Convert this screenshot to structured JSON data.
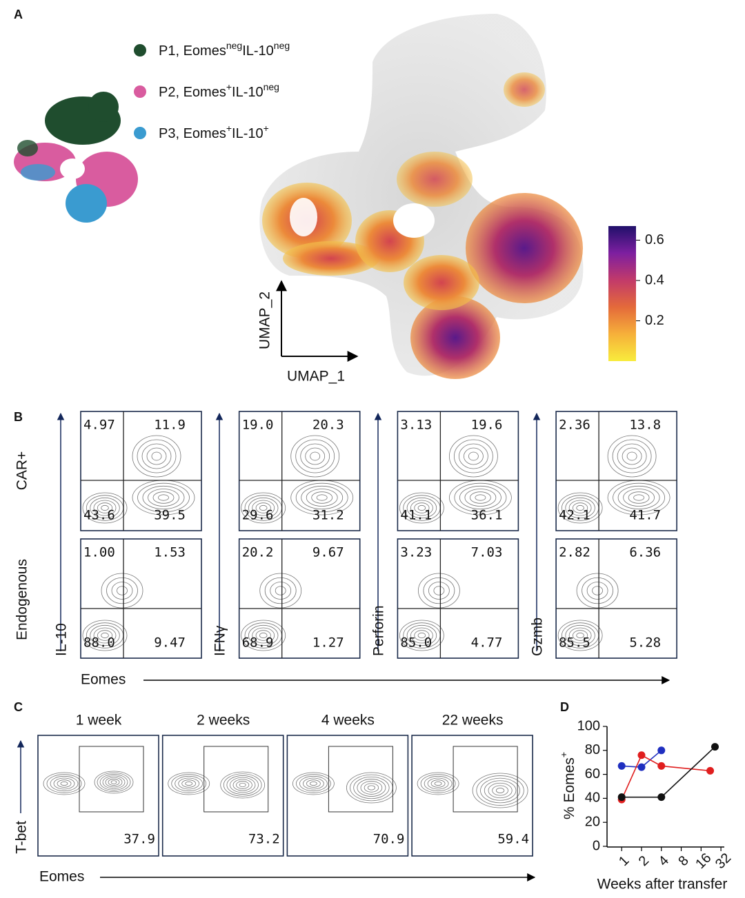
{
  "panel_a": {
    "label": "A",
    "legend": [
      {
        "color": "#1f4d2e",
        "parts": [
          {
            "text": "P1, Eomes"
          },
          {
            "text": "neg",
            "sup": true
          },
          {
            "text": "IL-10"
          },
          {
            "text": "neg",
            "sup": true
          }
        ]
      },
      {
        "color": "#d95c9f",
        "parts": [
          {
            "text": "P2, Eomes"
          },
          {
            "text": "+",
            "sup": true
          },
          {
            "text": "IL-10"
          },
          {
            "text": "neg",
            "sup": true
          }
        ]
      },
      {
        "color": "#3a9bd0",
        "parts": [
          {
            "text": "P3, Eomes"
          },
          {
            "text": "+",
            "sup": true
          },
          {
            "text": "IL-10"
          },
          {
            "text": "+",
            "sup": true
          }
        ]
      }
    ],
    "colorbar": {
      "lim": [
        0,
        0.67
      ],
      "ticks": [
        0.2,
        0.4,
        0.6
      ],
      "colors": [
        "#f8ec3c",
        "#f6b03a",
        "#e46a3a",
        "#c23a6a",
        "#7d1fa0",
        "#20106a"
      ]
    },
    "x_axis_label": "UMAP_1",
    "y_axis_label": "UMAP_2"
  },
  "panel_b": {
    "label": "B",
    "rows": [
      "CAR+",
      "Endogenous"
    ],
    "markers": [
      "IL-10",
      "IFNγ",
      "Perforin",
      "Gzmb"
    ],
    "x_label": "Eomes",
    "quadrants": [
      [
        [
          "4.97",
          "11.9",
          "43.6",
          "39.5"
        ],
        [
          "19.0",
          "20.3",
          "29.6",
          "31.2"
        ],
        [
          "3.13",
          "19.6",
          "41.1",
          "36.1"
        ],
        [
          "2.36",
          "13.8",
          "42.1",
          "41.7"
        ]
      ],
      [
        [
          "1.00",
          "1.53",
          "88.0",
          "9.47"
        ],
        [
          "20.2",
          "9.67",
          "68.9",
          "1.27"
        ],
        [
          "3.23",
          "7.03",
          "85.0",
          "4.77"
        ],
        [
          "2.82",
          "6.36",
          "85.5",
          "5.28"
        ]
      ]
    ]
  },
  "panel_c": {
    "label": "C",
    "timepoints": [
      "1 week",
      "2 weeks",
      "4 weeks",
      "22 weeks"
    ],
    "gated": [
      "37.9",
      "73.2",
      "70.9",
      "59.4"
    ],
    "y_label": "T-bet",
    "x_label": "Eomes"
  },
  "chart_data": {
    "type": "line",
    "panel_label": "D",
    "y_label": "% Eomes",
    "y_label_sup": "+",
    "x_label": "Weeks after transfer",
    "xscale": "log2",
    "xlim": [
      0.6,
      36
    ],
    "xticks": [
      1,
      2,
      4,
      8,
      16,
      32
    ],
    "ylim": [
      0,
      100
    ],
    "yticks": [
      0,
      20,
      40,
      60,
      80,
      100
    ],
    "series": [
      {
        "color": "#1f2fc0",
        "x": [
          1,
          2,
          4
        ],
        "values": [
          67,
          66,
          80
        ]
      },
      {
        "color": "#e01e1e",
        "x": [
          1,
          2,
          4,
          22
        ],
        "values": [
          39,
          76,
          67,
          63
        ]
      },
      {
        "color": "#111111",
        "x": [
          1,
          4,
          26
        ],
        "values": [
          41,
          41,
          83
        ]
      }
    ]
  }
}
